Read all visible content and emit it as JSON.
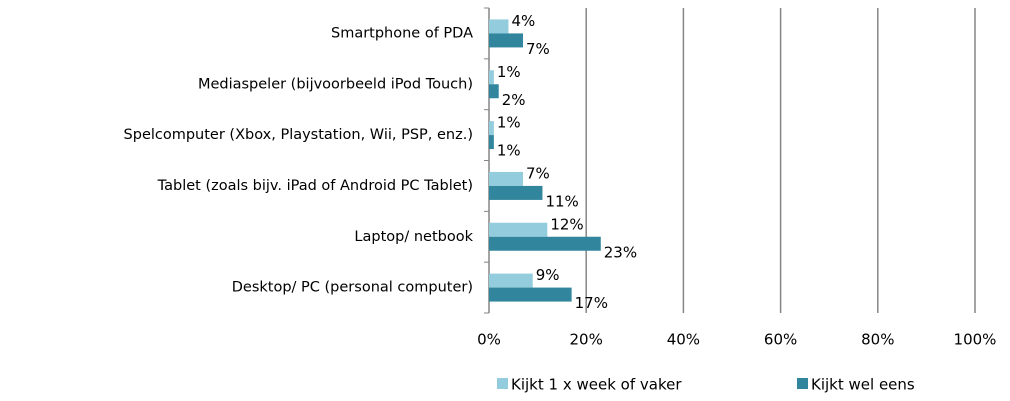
{
  "chart_data": {
    "type": "bar",
    "orientation": "horizontal",
    "categories": [
      "Smartphone of PDA",
      "Mediaspeler (bijvoorbeeld iPod Touch)",
      "Spelcomputer (Xbox, Playstation, Wii, PSP, enz.)",
      "Tablet (zoals bijv. iPad of Android PC Tablet)",
      "Laptop/ netbook",
      "Desktop/ PC (personal computer)"
    ],
    "series": [
      {
        "name": "Kijkt 1 x week of vaker",
        "color": "#93cddd",
        "values": [
          4,
          1,
          1,
          7,
          12,
          9
        ],
        "value_labels": [
          "4%",
          "1%",
          "1%",
          "7%",
          "12%",
          "9%"
        ]
      },
      {
        "name": "Kijkt wel eens",
        "color": "#31859c",
        "values": [
          7,
          2,
          1,
          11,
          23,
          17
        ],
        "value_labels": [
          "7%",
          "2%",
          "1%",
          "11%",
          "23%",
          "17%"
        ]
      }
    ],
    "xlim": [
      0,
      100
    ],
    "xticks": [
      {
        "value": 0,
        "label": "0%"
      },
      {
        "value": 20,
        "label": "20%"
      },
      {
        "value": 40,
        "label": "40%"
      },
      {
        "value": 60,
        "label": "60%"
      },
      {
        "value": 80,
        "label": "80%"
      },
      {
        "value": 100,
        "label": "100%"
      }
    ],
    "grid": true,
    "legend": "bottom"
  }
}
